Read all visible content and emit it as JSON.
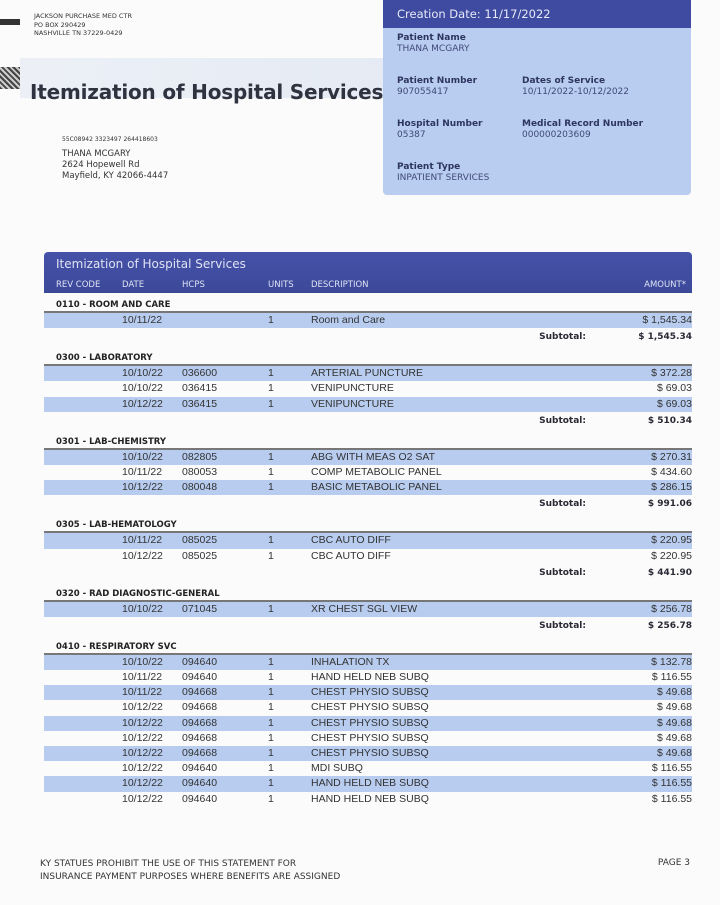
{
  "sender": {
    "name": "JACKSON PURCHASE MED CTR",
    "line1": "PO BOX 290429",
    "line2": "NASHVILLE TN 37229-0429"
  },
  "title": "Itemization of Hospital Services",
  "recipient": {
    "code": "55C08942 3323497 264418603",
    "name": "THANA MCGARY",
    "street": "2624 Hopewell Rd",
    "city": "Mayfield, KY 42066-4447"
  },
  "info": {
    "creation": "Creation Date: 11/17/2022",
    "patient_name_label": "Patient Name",
    "patient_name": "THANA MCGARY",
    "patient_number_label": "Patient Number",
    "patient_number": "907055417",
    "dates_label": "Dates of Service",
    "dates": "10/11/2022-10/12/2022",
    "hospital_number_label": "Hospital Number",
    "hospital_number": "05387",
    "mrn_label": "Medical Record Number",
    "mrn": "000000203609",
    "patient_type_label": "Patient Type",
    "patient_type": "INPATIENT SERVICES"
  },
  "table": {
    "title": "Itemization of Hospital Services",
    "columns": [
      "REV CODE",
      "DATE",
      "HCPS",
      "UNITS",
      "DESCRIPTION",
      "AMOUNT*"
    ],
    "subtotal_label": "Subtotal:",
    "sections": [
      {
        "name": "0110 - ROOM AND CARE",
        "subtotal": "$ 1,545.34",
        "rows": [
          [
            "10/11/22",
            "",
            "1",
            "Room and Care",
            "$ 1,545.34"
          ]
        ]
      },
      {
        "name": "0300 - LABORATORY",
        "subtotal": "$ 510.34",
        "rows": [
          [
            "10/10/22",
            "036600",
            "1",
            "ARTERIAL PUNCTURE",
            "$ 372.28"
          ],
          [
            "10/10/22",
            "036415",
            "1",
            "VENIPUNCTURE",
            "$ 69.03"
          ],
          [
            "10/12/22",
            "036415",
            "1",
            "VENIPUNCTURE",
            "$ 69.03"
          ]
        ]
      },
      {
        "name": "0301 - LAB-CHEMISTRY",
        "subtotal": "$ 991.06",
        "rows": [
          [
            "10/10/22",
            "082805",
            "1",
            "ABG WITH MEAS O2 SAT",
            "$ 270.31"
          ],
          [
            "10/11/22",
            "080053",
            "1",
            "COMP METABOLIC PANEL",
            "$ 434.60"
          ],
          [
            "10/12/22",
            "080048",
            "1",
            "BASIC METABOLIC PANEL",
            "$ 286.15"
          ]
        ]
      },
      {
        "name": "0305 - LAB-HEMATOLOGY",
        "subtotal": "$ 441.90",
        "rows": [
          [
            "10/11/22",
            "085025",
            "1",
            "CBC AUTO DIFF",
            "$ 220.95"
          ],
          [
            "10/12/22",
            "085025",
            "1",
            "CBC AUTO DIFF",
            "$ 220.95"
          ]
        ]
      },
      {
        "name": "0320 - RAD DIAGNOSTIC-GENERAL",
        "subtotal": "$ 256.78",
        "rows": [
          [
            "10/10/22",
            "071045",
            "1",
            "XR CHEST SGL VIEW",
            "$ 256.78"
          ]
        ]
      },
      {
        "name": "0410 - RESPIRATORY SVC",
        "rows": [
          [
            "10/10/22",
            "094640",
            "1",
            "INHALATION TX",
            "$ 132.78"
          ],
          [
            "10/11/22",
            "094640",
            "1",
            "HAND HELD NEB SUBQ",
            "$ 116.55"
          ],
          [
            "10/11/22",
            "094668",
            "1",
            "CHEST PHYSIO SUBSQ",
            "$ 49.68"
          ],
          [
            "10/12/22",
            "094668",
            "1",
            "CHEST PHYSIO SUBSQ",
            "$ 49.68"
          ],
          [
            "10/12/22",
            "094668",
            "1",
            "CHEST PHYSIO SUBSQ",
            "$ 49.68"
          ],
          [
            "10/12/22",
            "094668",
            "1",
            "CHEST PHYSIO SUBSQ",
            "$ 49.68"
          ],
          [
            "10/12/22",
            "094668",
            "1",
            "CHEST PHYSIO SUBSQ",
            "$ 49.68"
          ],
          [
            "10/12/22",
            "094640",
            "1",
            "MDI SUBQ",
            "$ 116.55"
          ],
          [
            "10/12/22",
            "094640",
            "1",
            "HAND HELD NEB SUBQ",
            "$ 116.55"
          ],
          [
            "10/12/22",
            "094640",
            "1",
            "HAND HELD NEB SUBQ",
            "$ 116.55"
          ]
        ]
      }
    ]
  },
  "footer": {
    "line1": "KY STATUES PROHIBIT THE USE OF THIS STATEMENT FOR",
    "line2": "INSURANCE PAYMENT PURPOSES WHERE BENEFITS ARE ASSIGNED",
    "page": "PAGE 3"
  },
  "colors": {
    "header": "#3f4ba0",
    "info_box": "#b9cdf0",
    "row_shade": "#b7ccef"
  }
}
